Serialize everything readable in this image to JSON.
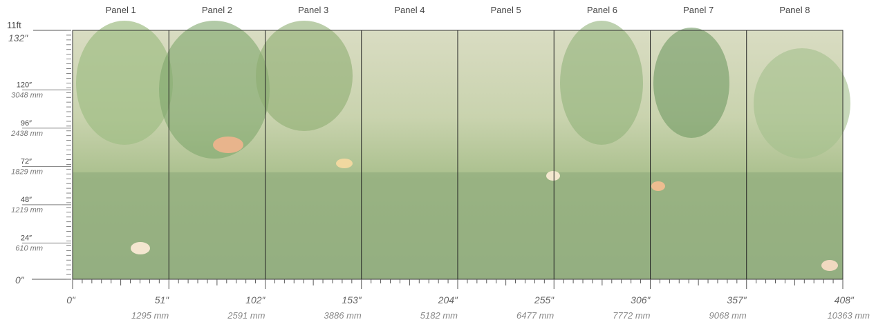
{
  "panels": [
    "Panel 1",
    "Panel 2",
    "Panel 3",
    "Panel 4",
    "Panel 5",
    "Panel 6",
    "Panel 7",
    "Panel 8"
  ],
  "height": {
    "top": "11ft",
    "marks": [
      {
        "inch": "132″"
      },
      {
        "inch": "120″",
        "mm": "3048 mm"
      },
      {
        "inch": "96″",
        "mm": "2438 mm"
      },
      {
        "inch": "72″",
        "mm": "1829 mm"
      },
      {
        "inch": "48″",
        "mm": "1219 mm"
      },
      {
        "inch": "24″",
        "mm": "610 mm"
      },
      {
        "inch": "0″"
      }
    ]
  },
  "width": {
    "marks": [
      {
        "inch": "0″"
      },
      {
        "inch": "51″",
        "mm": "1295 mm"
      },
      {
        "inch": "102″",
        "mm": "2591 mm"
      },
      {
        "inch": "153″",
        "mm": "3886 mm"
      },
      {
        "inch": "204″",
        "mm": "5182 mm"
      },
      {
        "inch": "255″",
        "mm": "6477 mm"
      },
      {
        "inch": "306″",
        "mm": "7772 mm"
      },
      {
        "inch": "357″",
        "mm": "9068 mm"
      },
      {
        "inch": "408″",
        "mm": "10363 mm"
      }
    ]
  }
}
